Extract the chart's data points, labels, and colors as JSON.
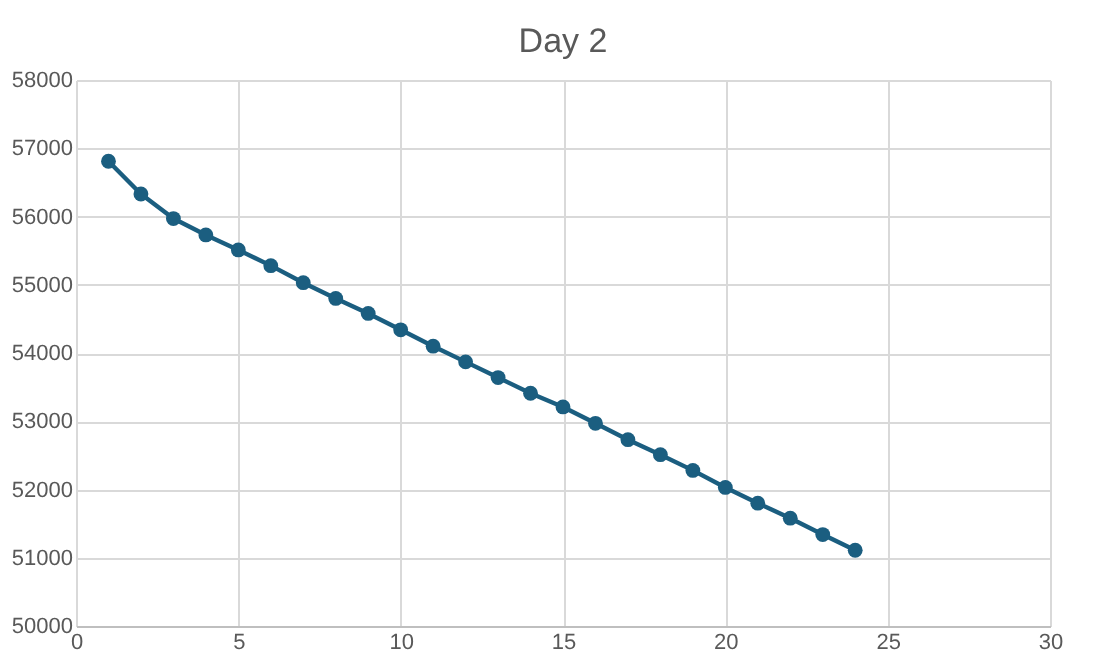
{
  "chart_data": {
    "type": "line",
    "title": "Day 2",
    "x": [
      1,
      2,
      3,
      4,
      5,
      6,
      7,
      8,
      9,
      10,
      11,
      12,
      13,
      14,
      15,
      16,
      17,
      18,
      19,
      20,
      21,
      22,
      23,
      24
    ],
    "series": [
      {
        "color": "#1b5e80",
        "values": [
          56810,
          56330,
          55970,
          55730,
          55510,
          55280,
          55030,
          54800,
          54580,
          54340,
          54100,
          53870,
          53640,
          53410,
          53210,
          52970,
          52730,
          52510,
          52280,
          52030,
          51800,
          51580,
          51340,
          51110
        ]
      }
    ],
    "xlim": [
      0,
      30
    ],
    "xticks": [
      0,
      5,
      10,
      15,
      20,
      25,
      30
    ],
    "ylim": [
      50000,
      58000
    ],
    "yticks": [
      50000,
      51000,
      52000,
      53000,
      54000,
      55000,
      56000,
      57000,
      58000
    ],
    "grid": true,
    "marker": "circle",
    "line_style": "solid"
  }
}
